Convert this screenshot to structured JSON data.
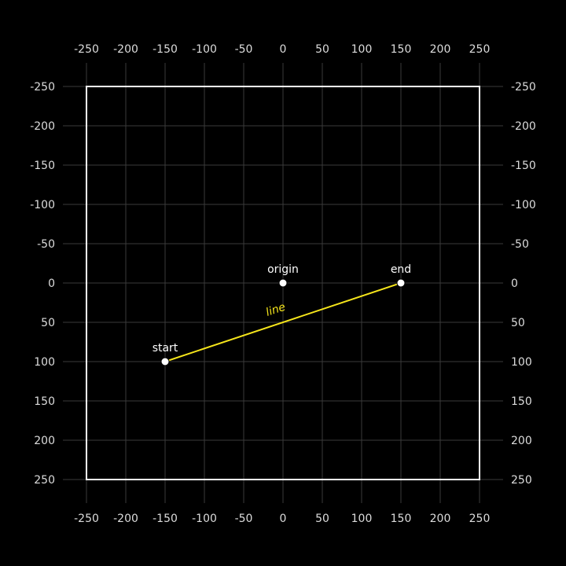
{
  "coordinate_plane": {
    "x_range": [
      -250,
      250
    ],
    "y_range": [
      -250,
      250
    ],
    "y_axis_direction": "down",
    "grid": true,
    "tick_step": 50,
    "tick_labels": [
      "-250",
      "-200",
      "-150",
      "-100",
      "-50",
      "0",
      "50",
      "100",
      "150",
      "200",
      "250"
    ],
    "tick_sides": [
      "top",
      "bottom",
      "left",
      "right"
    ]
  },
  "points": [
    {
      "label": "origin",
      "x": 0,
      "y": 0
    },
    {
      "label": "end",
      "x": 150,
      "y": 0
    },
    {
      "label": "start",
      "x": -150,
      "y": 100
    }
  ],
  "segments": [
    {
      "label": "line",
      "from": "start",
      "to": "end"
    }
  ],
  "colors": {
    "background": "#000000",
    "grid": "#3a3a3a",
    "frame": "#ffffff",
    "tick_text": "#dcdcdc",
    "point_fill": "#ffffff",
    "segment": "#f5e51b"
  }
}
